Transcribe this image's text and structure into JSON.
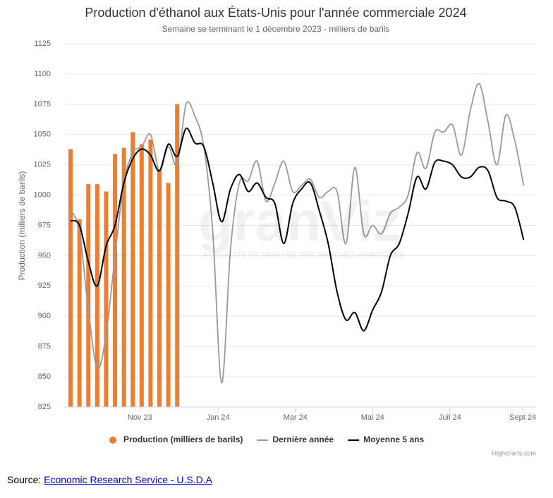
{
  "chart_data": {
    "type": "combo",
    "title": "Production d'éthanol aux États-Unis pour l'année commerciale 2024",
    "subtitle": "Semaine se terminant le 1 décembre 2023 - milliers de barils",
    "y_label": "Production (milliers de barils)",
    "x": [
      0,
      1,
      2,
      3,
      4,
      5,
      6,
      7,
      8,
      9,
      10,
      11,
      12,
      13,
      14,
      15,
      16,
      17,
      18,
      19,
      20,
      21,
      22,
      23,
      24,
      25,
      26,
      27,
      28,
      29,
      30,
      31,
      32,
      33,
      34,
      35,
      36,
      37,
      38,
      39,
      40,
      41,
      42,
      43,
      44,
      45,
      46,
      47,
      48,
      49,
      50,
      51
    ],
    "xlim": [
      -0.8,
      52.4
    ],
    "xticks": [
      {
        "value": 7.8,
        "label": "Nov 23"
      },
      {
        "value": 16.6,
        "label": "Jan 24"
      },
      {
        "value": 25.3,
        "label": "Mar 24"
      },
      {
        "value": 34,
        "label": "Mai 24"
      },
      {
        "value": 42.7,
        "label": "Juil 24"
      },
      {
        "value": 50.9,
        "label": "Sept 24"
      }
    ],
    "ylim": [
      825,
      1125
    ],
    "yticks": [
      825,
      850,
      875,
      900,
      925,
      950,
      975,
      1000,
      1025,
      1050,
      1075,
      1100,
      1125
    ],
    "grid": true,
    "series": [
      {
        "name": "Production (milliers de barils)",
        "kind": "bar",
        "color": "#ed7d31",
        "values": [
          1038,
          980,
          1009,
          1009,
          1003,
          1034,
          1039,
          1052,
          1042,
          1046,
          1021,
          1010,
          1075,
          null,
          null,
          null,
          null,
          null,
          null,
          null,
          null,
          null,
          null,
          null,
          null,
          null,
          null,
          null,
          null,
          null,
          null,
          null,
          null,
          null,
          null,
          null,
          null,
          null,
          null,
          null,
          null,
          null,
          null,
          null,
          null,
          null,
          null,
          null,
          null,
          null,
          null,
          null
        ]
      },
      {
        "name": "Dernière année",
        "kind": "line",
        "color": "#999999",
        "values": [
          988,
          970,
          905,
          857,
          885,
          950,
          1010,
          1035,
          1040,
          1050,
          1020,
          1040,
          1025,
          1075,
          1065,
          1040,
          970,
          845,
          955,
          1010,
          1012,
          1028,
          995,
          1010,
          1028,
          1003,
          1008,
          1013,
          998,
          1003,
          1003,
          960,
          1023,
          968,
          975,
          968,
          985,
          990,
          1000,
          1035,
          1022,
          1052,
          1052,
          1058,
          1033,
          1070,
          1092,
          1060,
          1025,
          1066,
          1045,
          1008
        ]
      },
      {
        "name": "Moyenne 5 ans",
        "kind": "line",
        "color": "#000000",
        "values": [
          979,
          975,
          945,
          925,
          958,
          975,
          1010,
          1030,
          1038,
          1033,
          1020,
          1042,
          1032,
          1055,
          1043,
          1040,
          1010,
          978,
          1005,
          1017,
          1003,
          1010,
          998,
          993,
          960,
          993,
          1005,
          1010,
          987,
          960,
          920,
          897,
          903,
          888,
          905,
          920,
          950,
          960,
          985,
          1015,
          1005,
          1027,
          1028,
          1025,
          1015,
          1015,
          1023,
          1020,
          998,
          995,
          990,
          963
        ]
      }
    ],
    "legend": "bottom",
    "watermark": {
      "brand": "granViz",
      "tagline": "ACTUALITÉ ET ANALYSE DES MARCHÉS AGRICOLES"
    },
    "credits": "Highcharts.com"
  },
  "source": {
    "label": "Source:",
    "link": "Economic Research Service - U.S.D.A"
  }
}
